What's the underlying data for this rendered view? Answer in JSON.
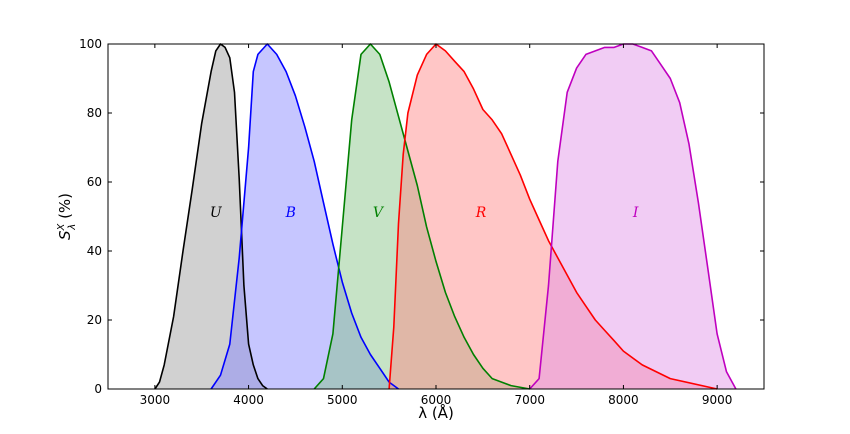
{
  "chart_data": {
    "type": "area",
    "title": "",
    "xlabel": "λ (Å)",
    "ylabel": "S_λ^X (%)",
    "xlim": [
      2500,
      9500
    ],
    "ylim": [
      0,
      100
    ],
    "xticks": [
      3000,
      4000,
      5000,
      6000,
      7000,
      8000,
      9000
    ],
    "yticks": [
      0,
      20,
      40,
      60,
      80,
      100
    ],
    "grid": false,
    "legend": "none",
    "series": [
      {
        "name": "U",
        "color": "#000000",
        "fill": "#999999",
        "label_at": [
          3650,
          51
        ],
        "points": [
          [
            3000,
            0
          ],
          [
            3050,
            2
          ],
          [
            3100,
            7
          ],
          [
            3200,
            21
          ],
          [
            3300,
            40
          ],
          [
            3400,
            58
          ],
          [
            3500,
            77
          ],
          [
            3600,
            92
          ],
          [
            3650,
            98
          ],
          [
            3700,
            100
          ],
          [
            3750,
            99
          ],
          [
            3800,
            96
          ],
          [
            3850,
            86
          ],
          [
            3900,
            61
          ],
          [
            3950,
            30
          ],
          [
            4000,
            13
          ],
          [
            4050,
            7
          ],
          [
            4100,
            3
          ],
          [
            4150,
            1
          ],
          [
            4200,
            0
          ]
        ]
      },
      {
        "name": "B",
        "color": "#0000ff",
        "fill": "#8080ff",
        "label_at": [
          4450,
          51
        ],
        "points": [
          [
            3600,
            0
          ],
          [
            3700,
            4
          ],
          [
            3800,
            13
          ],
          [
            3900,
            38
          ],
          [
            4000,
            70
          ],
          [
            4050,
            92
          ],
          [
            4100,
            97
          ],
          [
            4200,
            100
          ],
          [
            4300,
            97
          ],
          [
            4400,
            92
          ],
          [
            4500,
            85
          ],
          [
            4600,
            76
          ],
          [
            4700,
            66
          ],
          [
            4800,
            54
          ],
          [
            4900,
            42
          ],
          [
            5000,
            31
          ],
          [
            5100,
            22
          ],
          [
            5200,
            15
          ],
          [
            5300,
            10
          ],
          [
            5400,
            6
          ],
          [
            5500,
            2
          ],
          [
            5600,
            0
          ]
        ]
      },
      {
        "name": "V",
        "color": "#008000",
        "fill": "#80c080",
        "label_at": [
          5380,
          51
        ],
        "points": [
          [
            4700,
            0
          ],
          [
            4800,
            3
          ],
          [
            4900,
            16
          ],
          [
            5000,
            47
          ],
          [
            5100,
            78
          ],
          [
            5200,
            97
          ],
          [
            5300,
            100
          ],
          [
            5400,
            97
          ],
          [
            5500,
            89
          ],
          [
            5600,
            79
          ],
          [
            5700,
            69
          ],
          [
            5800,
            59
          ],
          [
            5900,
            47
          ],
          [
            6000,
            37
          ],
          [
            6100,
            28
          ],
          [
            6200,
            21
          ],
          [
            6300,
            15
          ],
          [
            6400,
            10
          ],
          [
            6500,
            6
          ],
          [
            6600,
            3
          ],
          [
            6700,
            2
          ],
          [
            6800,
            1
          ],
          [
            7000,
            0
          ]
        ]
      },
      {
        "name": "R",
        "color": "#ff0000",
        "fill": "#ff8080",
        "label_at": [
          6480,
          51
        ],
        "points": [
          [
            5500,
            0
          ],
          [
            5550,
            18
          ],
          [
            5600,
            48
          ],
          [
            5650,
            68
          ],
          [
            5700,
            80
          ],
          [
            5800,
            91
          ],
          [
            5900,
            97
          ],
          [
            6000,
            100
          ],
          [
            6100,
            98
          ],
          [
            6200,
            95
          ],
          [
            6300,
            92
          ],
          [
            6400,
            87
          ],
          [
            6500,
            81
          ],
          [
            6600,
            78
          ],
          [
            6700,
            74
          ],
          [
            6800,
            68
          ],
          [
            6900,
            62
          ],
          [
            7000,
            55
          ],
          [
            7100,
            49
          ],
          [
            7200,
            43
          ],
          [
            7300,
            38
          ],
          [
            7400,
            33
          ],
          [
            7500,
            28
          ],
          [
            7600,
            24
          ],
          [
            7700,
            20
          ],
          [
            7800,
            17
          ],
          [
            7900,
            14
          ],
          [
            8000,
            11
          ],
          [
            8200,
            7
          ],
          [
            8500,
            3
          ],
          [
            9000,
            0
          ]
        ]
      },
      {
        "name": "I",
        "color": "#bf00bf",
        "fill": "#e08fe6",
        "label_at": [
          8130,
          51
        ],
        "points": [
          [
            7000,
            0
          ],
          [
            7100,
            3
          ],
          [
            7200,
            30
          ],
          [
            7300,
            66
          ],
          [
            7400,
            86
          ],
          [
            7500,
            93
          ],
          [
            7600,
            97
          ],
          [
            7700,
            98
          ],
          [
            7800,
            99
          ],
          [
            7900,
            99
          ],
          [
            8000,
            100
          ],
          [
            8100,
            100
          ],
          [
            8200,
            99
          ],
          [
            8300,
            98
          ],
          [
            8400,
            94
          ],
          [
            8500,
            90
          ],
          [
            8600,
            83
          ],
          [
            8700,
            71
          ],
          [
            8800,
            54
          ],
          [
            8900,
            35
          ],
          [
            9000,
            16
          ],
          [
            9100,
            5
          ],
          [
            9200,
            0
          ]
        ]
      }
    ]
  }
}
